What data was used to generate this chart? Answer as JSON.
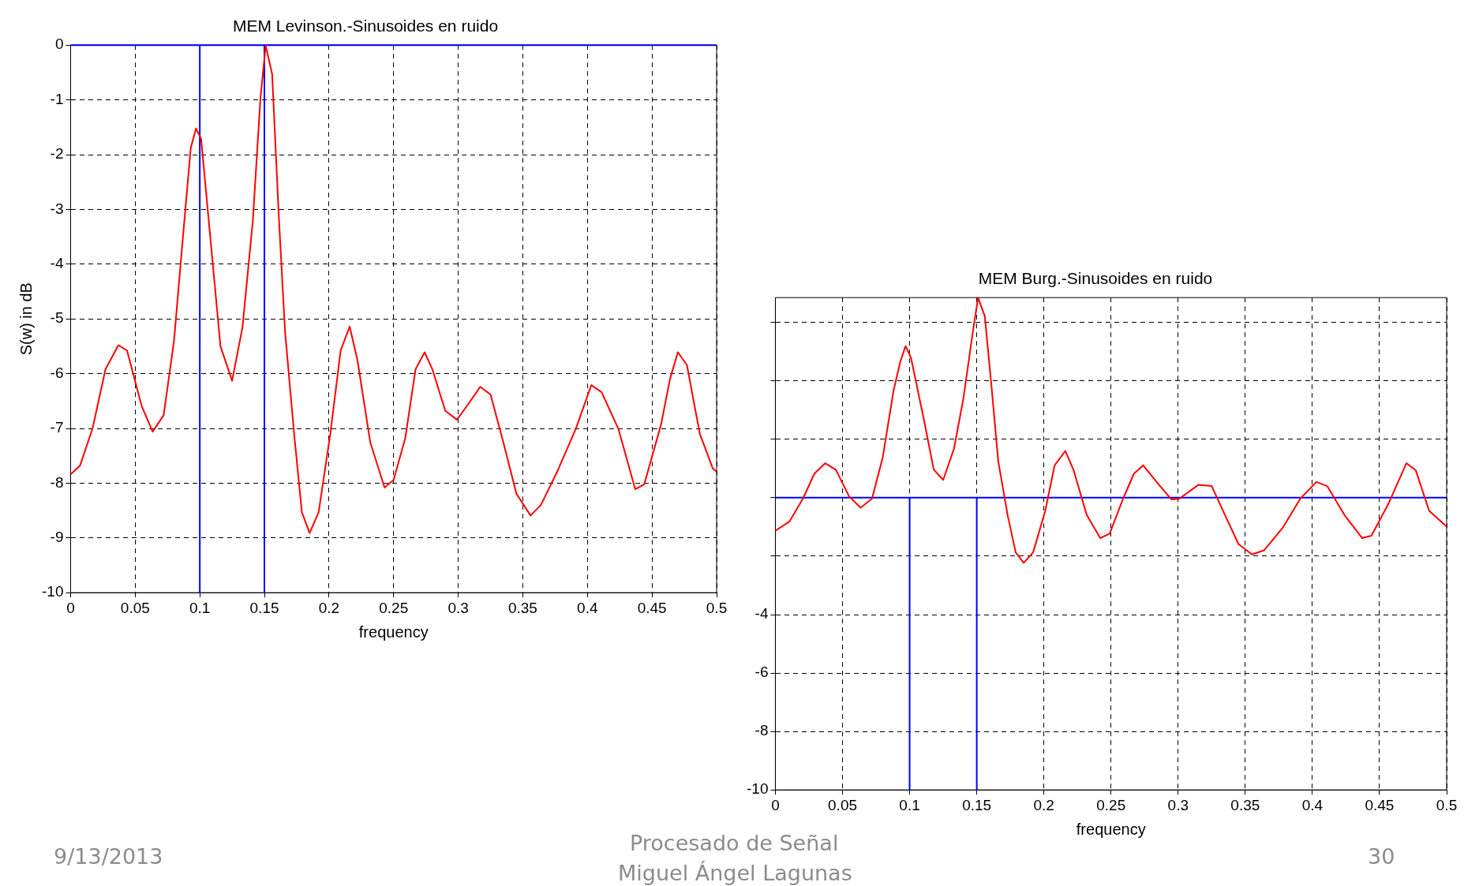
{
  "chart_data": [
    {
      "type": "line",
      "title": "MEM Levinson.-Sinusoides en ruido",
      "xlabel": "frequency",
      "ylabel": "S(w) in dB",
      "xlim": [
        0,
        0.5
      ],
      "xticks": [
        0,
        0.05,
        0.1,
        0.15,
        0.2,
        0.25,
        0.3,
        0.35,
        0.4,
        0.45,
        0.5
      ],
      "ylim": [
        -10,
        0
      ],
      "yticks": [
        -10,
        -9,
        -8,
        -7,
        -6,
        -5,
        -4,
        -3,
        -2,
        -1,
        0
      ],
      "grid": true,
      "legend": false,
      "marker": "none",
      "line_style": "solid",
      "annotations": [
        "9/13/2013",
        "Procesado de Señal",
        "Miguel Ángel Lagunas",
        "30"
      ],
      "series": [
        {
          "color": "#ff0000",
          "x": [
            0,
            0.0073,
            0.017,
            0.027,
            0.037,
            0.0437,
            0.055,
            0.0635,
            0.072,
            0.08,
            0.088,
            0.093,
            0.097,
            0.101,
            0.108,
            0.116,
            0.125,
            0.133,
            0.141,
            0.147,
            0.151,
            0.156,
            0.161,
            0.166,
            0.173,
            0.179,
            0.185,
            0.192,
            0.201,
            0.209,
            0.216,
            0.222,
            0.232,
            0.243,
            0.25,
            0.259,
            0.267,
            0.274,
            0.28,
            0.29,
            0.299,
            0.308,
            0.317,
            0.325,
            0.335,
            0.345,
            0.356,
            0.364,
            0.377,
            0.391,
            0.403,
            0.411,
            0.424,
            0.437,
            0.444,
            0.457,
            0.464,
            0.47,
            0.477,
            0.487,
            0.497,
            0.5
          ],
          "values": [
            -7.84,
            -7.68,
            -7.0,
            -5.92,
            -5.48,
            -5.58,
            -6.59,
            -7.06,
            -6.76,
            -5.41,
            -3.22,
            -1.88,
            -1.52,
            -1.71,
            -3.48,
            -5.5,
            -6.13,
            -5.16,
            -3.22,
            -0.95,
            -0.01,
            -0.53,
            -3.06,
            -5.24,
            -7.1,
            -8.53,
            -8.91,
            -8.53,
            -7.1,
            -5.58,
            -5.14,
            -5.75,
            -7.26,
            -8.08,
            -7.94,
            -7.18,
            -5.92,
            -5.61,
            -5.92,
            -6.68,
            -6.84,
            -6.55,
            -6.24,
            -6.38,
            -7.26,
            -8.19,
            -8.59,
            -8.4,
            -7.77,
            -7.01,
            -6.21,
            -6.34,
            -7.01,
            -8.11,
            -8.02,
            -6.93,
            -6.09,
            -5.61,
            -5.84,
            -7.1,
            -7.73,
            -7.79
          ]
        },
        {
          "color": "#0000ff",
          "x": [
            0,
            0.1,
            0.1,
            0.1,
            0.15,
            0.15,
            0.15,
            0.5
          ],
          "values": [
            0,
            0,
            -10,
            0,
            0,
            -10,
            0,
            0
          ]
        }
      ]
    },
    {
      "type": "line",
      "title": "MEM Burg.-Sinusoides en ruido",
      "xlabel": "frequency",
      "xlim": [
        0,
        0.5
      ],
      "xticks": [
        0,
        0.05,
        0.1,
        0.15,
        0.2,
        0.25,
        0.3,
        0.35,
        0.4,
        0.45,
        0.5
      ],
      "ylim": [
        -10,
        6.85
      ],
      "yticks": [
        -10,
        -8,
        -6,
        -4,
        {
          "value": -2,
          "label": null
        },
        {
          "value": 0,
          "label": null
        },
        {
          "value": 2,
          "label": null
        },
        {
          "value": 4,
          "label": null
        },
        {
          "value": 6,
          "label": null
        }
      ],
      "grid": true,
      "legend": false,
      "marker": "none",
      "line_style": "solid",
      "series": [
        {
          "color": "#ff0000",
          "x": [
            0,
            0.0106,
            0.0205,
            0.029,
            0.037,
            0.045,
            0.055,
            0.0635,
            0.072,
            0.08,
            0.088,
            0.093,
            0.097,
            0.101,
            0.11,
            0.118,
            0.125,
            0.133,
            0.14,
            0.147,
            0.151,
            0.156,
            0.161,
            0.166,
            0.173,
            0.179,
            0.185,
            0.192,
            0.201,
            0.208,
            0.216,
            0.222,
            0.232,
            0.242,
            0.249,
            0.259,
            0.267,
            0.274,
            0.284,
            0.295,
            0.301,
            0.315,
            0.325,
            0.335,
            0.345,
            0.355,
            0.364,
            0.378,
            0.391,
            0.403,
            0.411,
            0.424,
            0.437,
            0.444,
            0.457,
            0.47,
            0.477,
            0.487,
            0.5
          ],
          "values": [
            -1.13,
            -0.81,
            -0.03,
            0.82,
            1.18,
            0.96,
            0.04,
            -0.34,
            -0.03,
            1.39,
            3.66,
            4.65,
            5.19,
            4.79,
            2.81,
            0.96,
            0.61,
            1.67,
            3.38,
            5.65,
            6.85,
            6.21,
            3.8,
            1.25,
            -0.6,
            -1.87,
            -2.23,
            -1.87,
            -0.45,
            1.11,
            1.6,
            0.96,
            -0.6,
            -1.38,
            -1.23,
            -0.03,
            0.82,
            1.11,
            0.54,
            -0.06,
            -0.03,
            0.44,
            0.4,
            -0.6,
            -1.59,
            -1.94,
            -1.8,
            -1.02,
            -0.03,
            0.54,
            0.4,
            -0.6,
            -1.38,
            -1.3,
            -0.17,
            1.18,
            0.94,
            -0.45,
            -0.99
          ]
        },
        {
          "color": "#0000ff",
          "x": [
            0,
            0.1,
            0.1,
            0.1,
            0.15,
            0.15,
            0.15,
            0.5
          ],
          "values": [
            0,
            0,
            -10,
            0,
            0,
            -10,
            0,
            0
          ]
        }
      ]
    }
  ]
}
